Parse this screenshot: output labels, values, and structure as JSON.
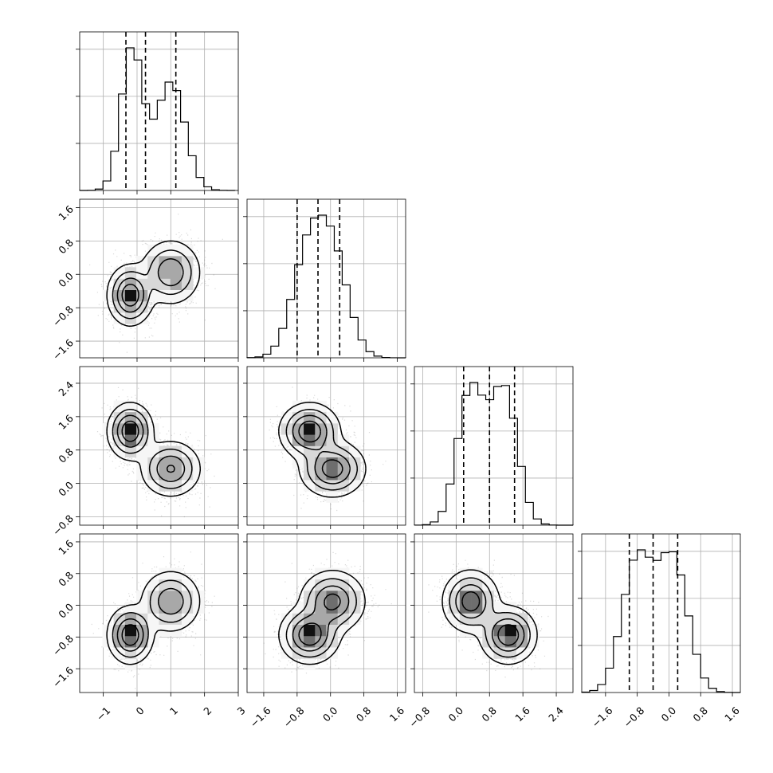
{
  "chart_data": {
    "type": "corner",
    "title": "",
    "variables": [
      {
        "range": [
          -1.7,
          3.0
        ],
        "ticks": [
          -1,
          0,
          1,
          2,
          3
        ],
        "tick_labels": [
          "−1",
          "0",
          "1",
          "2",
          "3"
        ],
        "quantiles": [
          -0.33,
          0.25,
          1.15
        ],
        "mixture": {
          "means": [
            -0.15,
            1.0
          ],
          "sds": [
            0.32,
            0.42
          ],
          "weights": [
            0.5,
            0.5
          ]
        },
        "histogram": {
          "bins": 20,
          "range": [
            -1.7,
            2.9
          ],
          "relative_peak": 1.0
        }
      },
      {
        "range": [
          -2.0,
          1.8
        ],
        "ticks": [
          -1.6,
          -0.8,
          0.0,
          0.8,
          1.6
        ],
        "tick_labels": [
          "−1.6",
          "−0.8",
          "0.0",
          "0.8",
          "1.6"
        ],
        "quantiles": [
          -0.8,
          -0.3,
          0.22
        ],
        "mixture": {
          "means": [
            -0.55,
            0.05
          ],
          "sds": [
            0.38,
            0.38
          ],
          "weights": [
            0.5,
            0.5
          ]
        },
        "histogram": {
          "bins": 20,
          "range": [
            -2.0,
            1.8
          ],
          "relative_peak": 1.0
        }
      },
      {
        "range": [
          -1.0,
          2.8
        ],
        "ticks": [
          -0.8,
          0.0,
          0.8,
          1.6,
          2.4
        ],
        "tick_labels": [
          "−0.8",
          "0.0",
          "0.8",
          "1.6",
          "2.4"
        ],
        "quantiles": [
          0.18,
          0.8,
          1.4
        ],
        "mixture": {
          "means": [
            0.35,
            1.15
          ],
          "sds": [
            0.32,
            0.32
          ],
          "weights": [
            0.5,
            0.5
          ]
        },
        "histogram": {
          "bins": 20,
          "range": [
            -1.0,
            2.8
          ],
          "relative_peak": 1.0
        }
      },
      {
        "range": [
          -2.2,
          1.8
        ],
        "ticks": [
          -1.6,
          -0.8,
          0.0,
          0.8,
          1.6
        ],
        "tick_labels": [
          "−1.6",
          "−0.8",
          "0.0",
          "0.8",
          "1.6"
        ],
        "quantiles": [
          -1.0,
          -0.4,
          0.22
        ],
        "mixture": {
          "means": [
            -0.8,
            0.1
          ],
          "sds": [
            0.38,
            0.38
          ],
          "weights": [
            0.5,
            0.5
          ]
        },
        "histogram": {
          "bins": 20,
          "range": [
            -2.2,
            1.8
          ],
          "relative_peak": 1.0
        }
      }
    ],
    "modes": [
      {
        "weight": 0.5,
        "mean": [
          -0.2,
          -0.5,
          1.25,
          -0.75
        ],
        "sd": [
          0.3,
          0.32,
          0.3,
          0.32
        ]
      },
      {
        "weight": 0.5,
        "mean": [
          1.0,
          0.05,
          0.35,
          0.1
        ],
        "sd": [
          0.4,
          0.35,
          0.3,
          0.35
        ]
      }
    ],
    "contour_levels_sigma": [
      0.5,
      1.0,
      1.5,
      2.0
    ],
    "grid": true
  }
}
